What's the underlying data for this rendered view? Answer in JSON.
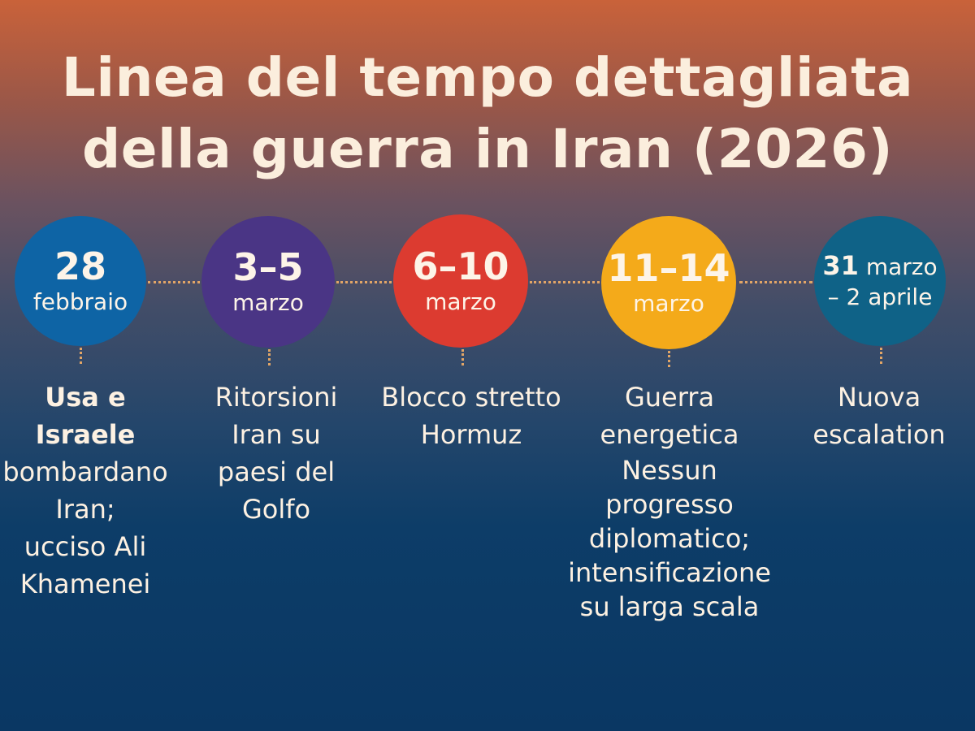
{
  "title": {
    "line1": "Linea del tempo dettagliata",
    "line2": "della guerra in Iran (2026)"
  },
  "events": [
    {
      "date_main": "28",
      "date_sub": "febbraio",
      "color": "#0e64a5",
      "desc_bold": "Usa e Israele",
      "desc_lines": [
        "bombardano",
        "Iran;",
        "ucciso Ali",
        "Khamenei"
      ]
    },
    {
      "date_main": "3–5",
      "date_sub": "marzo",
      "color": "#4a3585",
      "desc_lines": [
        "Ritorsioni",
        "Iran su",
        "paesi del",
        "Golfo"
      ]
    },
    {
      "date_main": "6–10",
      "date_sub": "marzo",
      "color": "#dc3b30",
      "desc_lines": [
        "Blocco stretto",
        "Hormuz"
      ]
    },
    {
      "date_main": "11–14",
      "date_sub": "marzo",
      "color": "#f4aa1a",
      "desc_lines": [
        "Guerra",
        "energetica",
        "Nessun progresso",
        "diplomatico;",
        "intensificazione",
        "su larga scala"
      ]
    },
    {
      "date_main_bold": "31",
      "date_main_rest": " marzo",
      "date_sub": "– 2 aprile",
      "color": "#0f6287",
      "desc_lines": [
        "Nuova",
        "escalation"
      ]
    }
  ]
}
